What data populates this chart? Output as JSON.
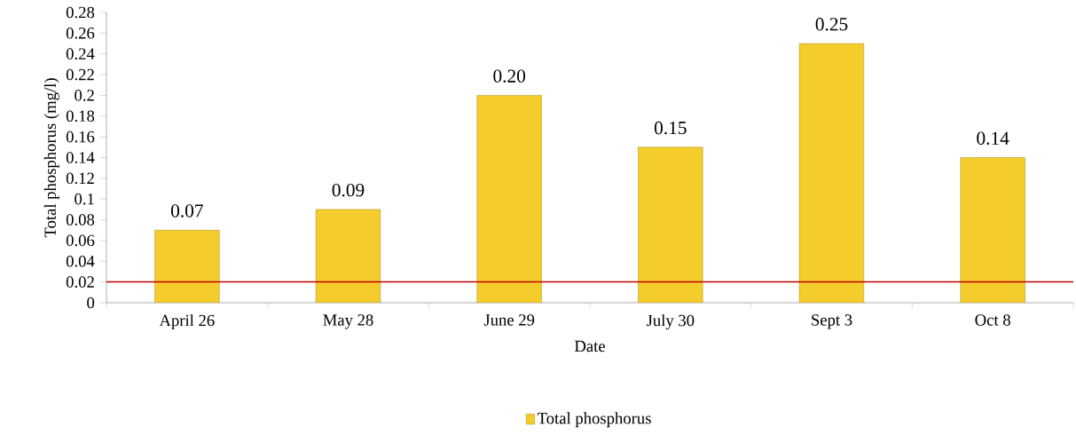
{
  "chart_data": {
    "type": "bar",
    "xlabel": "Date",
    "ylabel": "Total phosphorus (mg/l)",
    "categories": [
      "April 26",
      "May 28",
      "June 29",
      "July 30",
      "Sept 3",
      "Oct 8"
    ],
    "series": [
      {
        "name": "Total phosphorus",
        "color": "#f4cc2c",
        "values": [
          0.07,
          0.09,
          0.2,
          0.15,
          0.25,
          0.14
        ],
        "value_labels": [
          "0.07",
          "0.09",
          "0.20",
          "0.15",
          "0.25",
          "0.14"
        ]
      }
    ],
    "ylim": [
      0,
      0.28
    ],
    "yticks": [
      0,
      0.02,
      0.04,
      0.06,
      0.08,
      0.1,
      0.12,
      0.14,
      0.16,
      0.18,
      0.2,
      0.22,
      0.24,
      0.26,
      0.28
    ],
    "ref_lines": [
      {
        "axis": "y",
        "value": 0.02,
        "color": "#c00000"
      }
    ],
    "grid": false,
    "legend": "bottom"
  }
}
